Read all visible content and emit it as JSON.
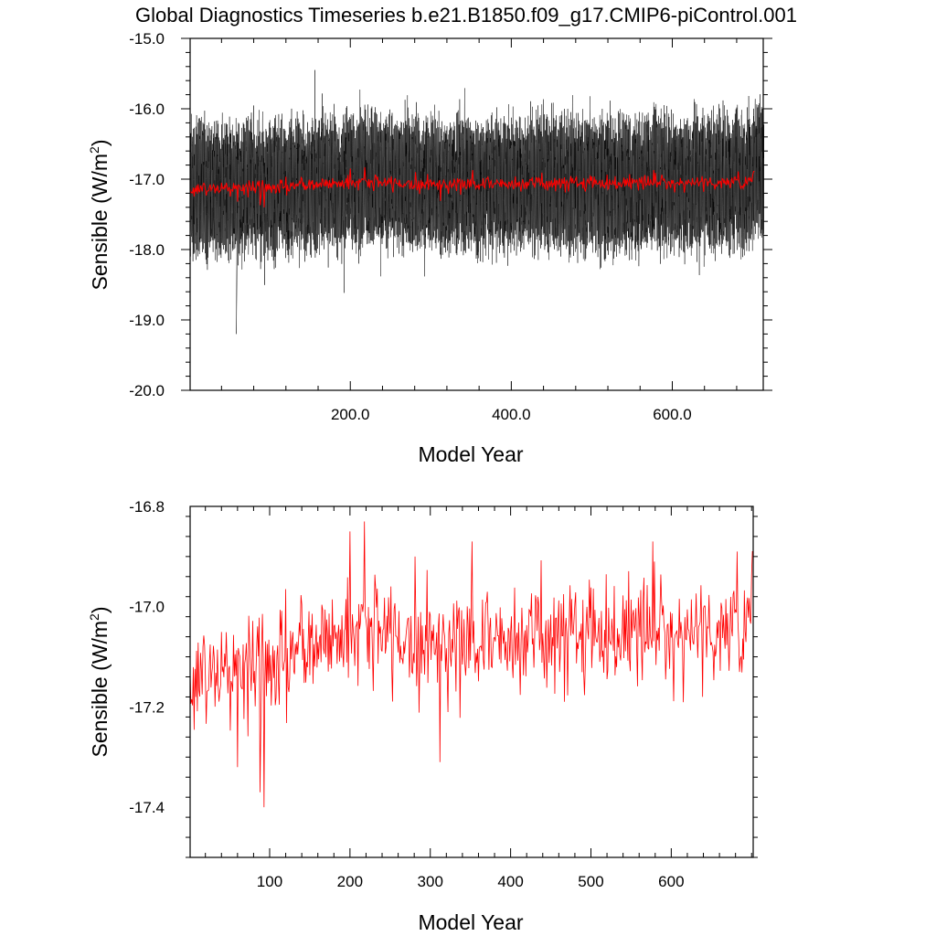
{
  "title": "Global Diagnostics Timeseries b.e21.B1850.f09_g17.CMIP6-piControl.001",
  "colors": {
    "monthly": "#000000",
    "annual": "#ff0000"
  },
  "chart_data": [
    {
      "type": "line",
      "title": "Global Diagnostics Timeseries b.e21.B1850.f09_g17.CMIP6-piControl.001",
      "xlabel": "Model Year",
      "ylabel": "Sensible (W/m",
      "ylabel_sup": "2",
      "ylabel_close": ")",
      "xlim": [
        1,
        713
      ],
      "ylim": [
        -20.0,
        -15.0
      ],
      "xticks": [
        200,
        400,
        600
      ],
      "xtick_labels": [
        "200.0",
        "400.0",
        "600.0"
      ],
      "yticks": [
        -15.0,
        -16.0,
        -17.0,
        -18.0,
        -19.0,
        -20.0
      ],
      "ytick_labels": [
        "-15.0",
        "-16.0",
        "-17.0",
        "-18.0",
        "-19.0",
        "-20.0"
      ],
      "grid": false,
      "series": [
        {
          "color": "#000000",
          "kind": "monthly",
          "mean": -17.07,
          "annual_cycle_amplitude": 0.75,
          "noise_sd": 0.18,
          "max": -15.45,
          "min": -19.2
        },
        {
          "color": "#ff0000",
          "kind": "annual",
          "mean": -17.07,
          "max": -16.83,
          "min": -17.4
        }
      ]
    },
    {
      "type": "line",
      "xlabel": "Model Year",
      "ylabel": "Sensible (W/m",
      "ylabel_sup": "2",
      "ylabel_close": ")",
      "xlim": [
        1,
        702
      ],
      "ylim": [
        -17.5,
        -16.8
      ],
      "xticks": [
        100,
        200,
        300,
        400,
        500,
        600
      ],
      "xtick_labels": [
        "100",
        "200",
        "300",
        "400",
        "500",
        "600"
      ],
      "yticks": [
        -16.8,
        -17.0,
        -17.2,
        -17.4
      ],
      "ytick_labels": [
        "-16.8",
        "-17.0",
        "-17.2",
        "-17.4"
      ],
      "grid": false,
      "series": [
        {
          "color": "#ff0000",
          "kind": "annual",
          "start_value": -17.13,
          "end_value": -16.89,
          "trend": [
            [
              1,
              -17.14
            ],
            [
              100,
              -17.12
            ],
            [
              200,
              -17.04
            ],
            [
              300,
              -17.07
            ],
            [
              400,
              -17.06
            ],
            [
              500,
              -17.05
            ],
            [
              600,
              -17.05
            ],
            [
              702,
              -17.04
            ]
          ],
          "noise_sd": 0.055,
          "extremes": [
            [
              93,
              -17.4
            ],
            [
              88,
              -17.37
            ],
            [
              60,
              -17.32
            ],
            [
              312,
              -17.31
            ],
            [
              218,
              -16.83
            ],
            [
              200,
              -16.85
            ],
            [
              352,
              -16.87
            ],
            [
              577,
              -16.87
            ],
            [
              682,
              -16.89
            ],
            [
              701,
              -16.89
            ]
          ]
        }
      ]
    }
  ]
}
